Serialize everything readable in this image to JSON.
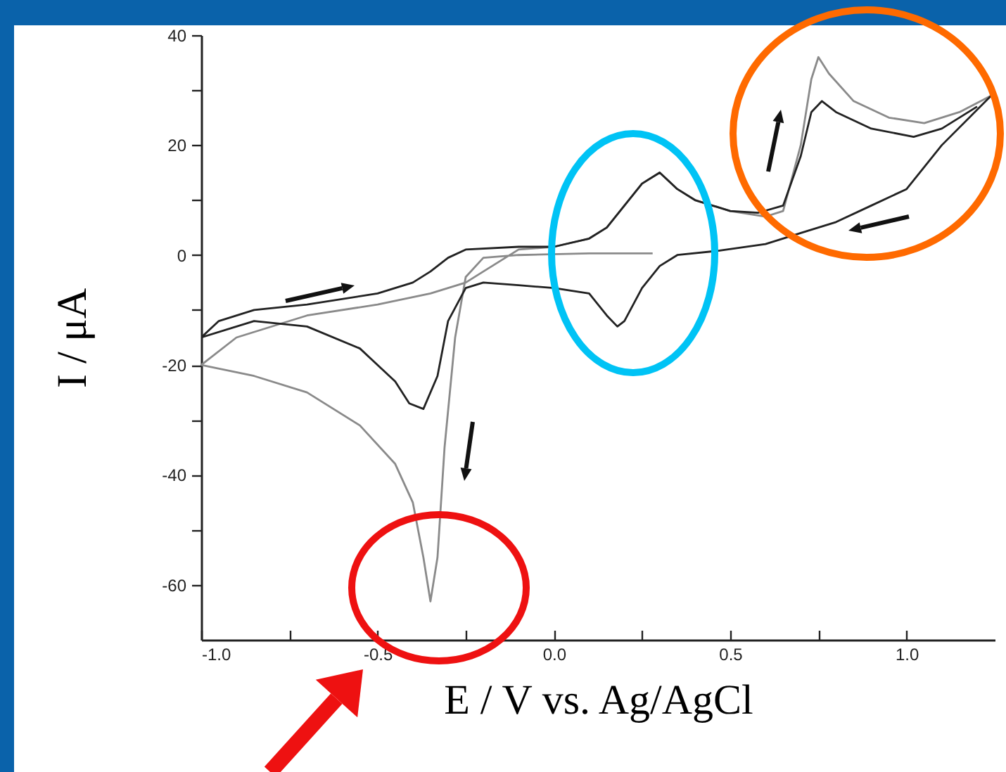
{
  "chart_data": {
    "type": "line",
    "xlabel": "E / V vs. Ag/AgCl",
    "ylabel": "I / μA",
    "xlim": [
      -1.0,
      1.25
    ],
    "ylim": [
      -70,
      40
    ],
    "xticks": [
      {
        "value": -1,
        "label": "-1.0"
      },
      {
        "value": -0.75,
        "label": null
      },
      {
        "value": -0.5,
        "label": "-0.5"
      },
      {
        "value": -0.25,
        "label": null
      },
      {
        "value": 0,
        "label": "0.0"
      },
      {
        "value": 0.25,
        "label": null
      },
      {
        "value": 0.5,
        "label": "0.5"
      },
      {
        "value": 0.75,
        "label": null
      },
      {
        "value": 1,
        "label": "1.0"
      }
    ],
    "yticks": [
      -60,
      {
        "value": -50,
        "label": null
      },
      -40,
      {
        "value": -30,
        "label": null
      },
      -20,
      {
        "value": -10,
        "label": null
      },
      0,
      {
        "value": 10,
        "label": null
      },
      20,
      {
        "value": 30,
        "label": null
      },
      40
    ],
    "grid": false,
    "legend": false,
    "marker": "none",
    "line_style": "solid",
    "series": [
      {
        "color": "#8a8a8a",
        "x": [
          0.28,
          0.1,
          -0.1,
          -0.2,
          -0.25,
          -0.28,
          -0.31,
          -0.33,
          -0.35,
          -0.37,
          -0.4,
          -0.45,
          -0.55,
          -0.7,
          -0.85,
          -1.0,
          -0.9,
          -0.7,
          -0.5,
          -0.35,
          -0.25,
          -0.2,
          -0.1,
          0.0,
          0.1,
          0.15,
          0.2,
          0.25,
          0.3,
          0.35,
          0.4,
          0.5,
          0.6,
          0.65,
          0.7,
          0.73,
          0.75,
          0.78,
          0.85,
          0.95,
          1.05,
          1.15,
          1.24
        ],
        "values": [
          0.3,
          0.3,
          0,
          -0.5,
          -4,
          -15,
          -35,
          -55,
          -63,
          -55,
          -45,
          -38,
          -31,
          -25,
          -22,
          -20,
          -15,
          -11,
          -9,
          -7,
          -5,
          -3,
          1,
          1.5,
          3,
          5,
          9,
          13,
          15,
          12,
          10,
          8,
          7,
          8,
          20,
          32,
          36,
          33,
          28,
          25,
          24,
          26,
          29
        ]
      },
      {
        "color": "#222222",
        "x": [
          1.24,
          1.1,
          1.0,
          0.9,
          0.8,
          0.7,
          0.6,
          0.47,
          0.35,
          0.3,
          0.25,
          0.2,
          0.18,
          0.15,
          0.1,
          0.0,
          -0.1,
          -0.2,
          -0.25,
          -0.3,
          -0.33,
          -0.37,
          -0.41,
          -0.45,
          -0.55,
          -0.7,
          -0.85,
          -1.0,
          -0.95,
          -0.85,
          -0.7,
          -0.5,
          -0.4,
          -0.35,
          -0.3,
          -0.25,
          -0.1,
          0.0,
          0.1,
          0.15,
          0.2,
          0.25,
          0.3,
          0.35,
          0.4,
          0.5,
          0.58,
          0.65,
          0.7,
          0.73,
          0.76,
          0.8,
          0.9,
          1.02,
          1.1,
          1.2
        ],
        "values": [
          29,
          20,
          12,
          9,
          6,
          4,
          2,
          0.8,
          0,
          -2,
          -6,
          -12,
          -13,
          -11,
          -7,
          -6,
          -5.5,
          -5,
          -6,
          -12,
          -22,
          -28,
          -27,
          -23,
          -17,
          -13,
          -12,
          -15,
          -12,
          -10,
          -9,
          -7,
          -5,
          -3,
          -0.5,
          1,
          1.5,
          1.5,
          3,
          5,
          9,
          13,
          15,
          12,
          10,
          8,
          7.7,
          9,
          18,
          26,
          28,
          26,
          23,
          21.5,
          23,
          27
        ]
      }
    ]
  }
}
